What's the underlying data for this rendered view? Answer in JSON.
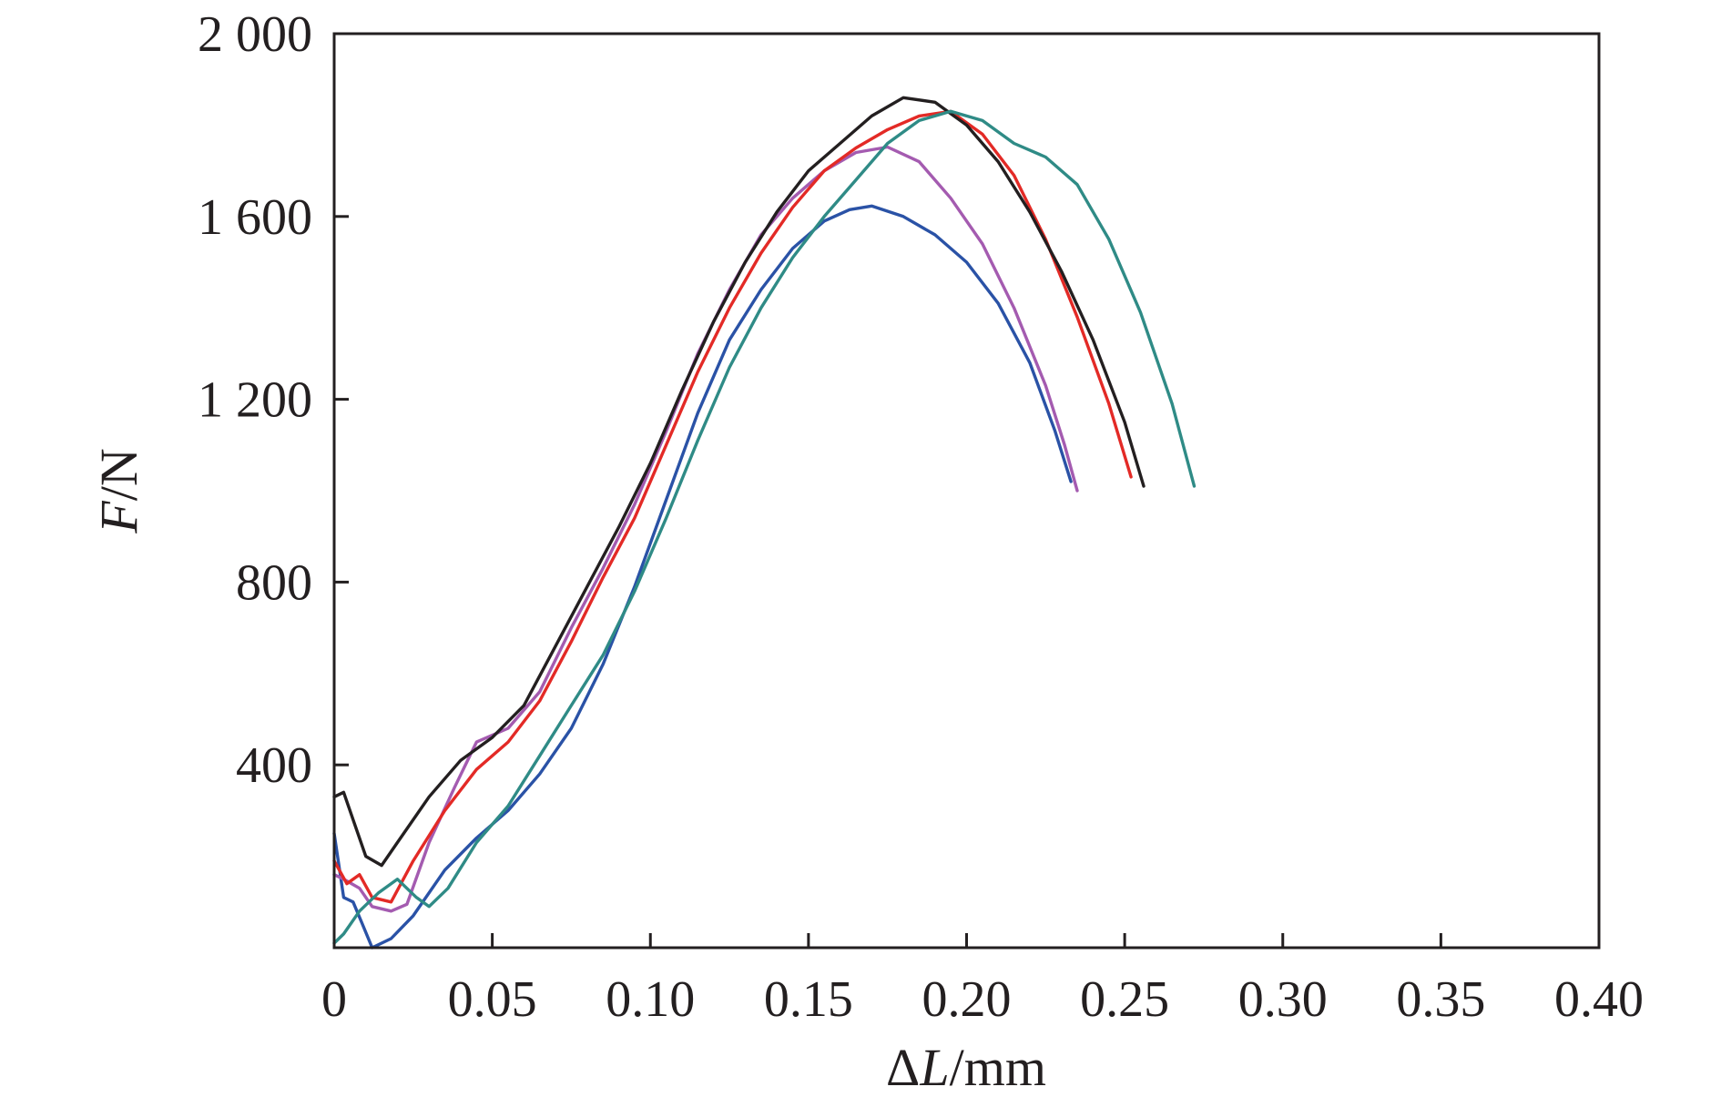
{
  "chart_data": {
    "type": "line",
    "xlabel": {
      "prefix": "Δ",
      "var": "L",
      "unit": "/mm"
    },
    "ylabel": {
      "var": "F",
      "unit": "/N"
    },
    "xlim": [
      0,
      0.4
    ],
    "ylim": [
      0,
      2000
    ],
    "x_ticks": [
      0,
      0.05,
      0.1,
      0.15,
      0.2,
      0.25,
      0.3,
      0.35,
      0.4
    ],
    "x_tick_labels": [
      "0",
      "0.05",
      "0.10",
      "0.15",
      "0.20",
      "0.25",
      "0.30",
      "0.35",
      "0.40"
    ],
    "y_ticks": [
      400,
      800,
      1200,
      1600,
      2000
    ],
    "y_tick_labels": [
      "400",
      "800",
      "1 200",
      "1 600",
      "2 000"
    ],
    "grid": false,
    "series": [
      {
        "color": "#2a52a6",
        "points": [
          [
            0.0,
            250
          ],
          [
            0.003,
            110
          ],
          [
            0.006,
            100
          ],
          [
            0.009,
            50
          ],
          [
            0.012,
            0
          ],
          [
            0.018,
            20
          ],
          [
            0.025,
            70
          ],
          [
            0.035,
            170
          ],
          [
            0.045,
            240
          ],
          [
            0.055,
            300
          ],
          [
            0.065,
            380
          ],
          [
            0.075,
            480
          ],
          [
            0.085,
            620
          ],
          [
            0.095,
            790
          ],
          [
            0.105,
            980
          ],
          [
            0.115,
            1170
          ],
          [
            0.125,
            1330
          ],
          [
            0.135,
            1440
          ],
          [
            0.145,
            1530
          ],
          [
            0.155,
            1590
          ],
          [
            0.163,
            1615
          ],
          [
            0.17,
            1623
          ],
          [
            0.18,
            1600
          ],
          [
            0.19,
            1560
          ],
          [
            0.2,
            1500
          ],
          [
            0.21,
            1410
          ],
          [
            0.22,
            1280
          ],
          [
            0.228,
            1130
          ],
          [
            0.233,
            1020
          ]
        ]
      },
      {
        "color": "#a45bb0",
        "points": [
          [
            0.0,
            160
          ],
          [
            0.003,
            150
          ],
          [
            0.008,
            130
          ],
          [
            0.012,
            90
          ],
          [
            0.018,
            80
          ],
          [
            0.023,
            95
          ],
          [
            0.03,
            230
          ],
          [
            0.038,
            350
          ],
          [
            0.045,
            450
          ],
          [
            0.055,
            480
          ],
          [
            0.065,
            560
          ],
          [
            0.075,
            700
          ],
          [
            0.085,
            830
          ],
          [
            0.095,
            970
          ],
          [
            0.105,
            1130
          ],
          [
            0.115,
            1300
          ],
          [
            0.125,
            1440
          ],
          [
            0.135,
            1560
          ],
          [
            0.145,
            1640
          ],
          [
            0.155,
            1700
          ],
          [
            0.165,
            1740
          ],
          [
            0.175,
            1752
          ],
          [
            0.185,
            1720
          ],
          [
            0.195,
            1640
          ],
          [
            0.205,
            1540
          ],
          [
            0.215,
            1400
          ],
          [
            0.225,
            1230
          ],
          [
            0.231,
            1100
          ],
          [
            0.235,
            1000
          ]
        ]
      },
      {
        "color": "#e32a26",
        "points": [
          [
            0.0,
            190
          ],
          [
            0.004,
            140
          ],
          [
            0.008,
            160
          ],
          [
            0.012,
            110
          ],
          [
            0.018,
            100
          ],
          [
            0.025,
            190
          ],
          [
            0.035,
            300
          ],
          [
            0.045,
            390
          ],
          [
            0.055,
            450
          ],
          [
            0.065,
            540
          ],
          [
            0.075,
            670
          ],
          [
            0.085,
            810
          ],
          [
            0.095,
            940
          ],
          [
            0.105,
            1100
          ],
          [
            0.115,
            1260
          ],
          [
            0.125,
            1400
          ],
          [
            0.135,
            1520
          ],
          [
            0.145,
            1620
          ],
          [
            0.155,
            1700
          ],
          [
            0.165,
            1750
          ],
          [
            0.175,
            1790
          ],
          [
            0.185,
            1820
          ],
          [
            0.195,
            1830
          ],
          [
            0.205,
            1780
          ],
          [
            0.215,
            1690
          ],
          [
            0.225,
            1550
          ],
          [
            0.235,
            1380
          ],
          [
            0.245,
            1190
          ],
          [
            0.252,
            1030
          ]
        ]
      },
      {
        "color": "#231f20",
        "points": [
          [
            0.0,
            330
          ],
          [
            0.003,
            340
          ],
          [
            0.006,
            280
          ],
          [
            0.01,
            200
          ],
          [
            0.015,
            180
          ],
          [
            0.02,
            230
          ],
          [
            0.03,
            330
          ],
          [
            0.04,
            410
          ],
          [
            0.05,
            460
          ],
          [
            0.06,
            530
          ],
          [
            0.07,
            660
          ],
          [
            0.08,
            790
          ],
          [
            0.09,
            920
          ],
          [
            0.1,
            1060
          ],
          [
            0.11,
            1220
          ],
          [
            0.12,
            1370
          ],
          [
            0.13,
            1500
          ],
          [
            0.14,
            1610
          ],
          [
            0.15,
            1700
          ],
          [
            0.16,
            1760
          ],
          [
            0.17,
            1820
          ],
          [
            0.18,
            1860
          ],
          [
            0.19,
            1850
          ],
          [
            0.2,
            1800
          ],
          [
            0.21,
            1720
          ],
          [
            0.22,
            1610
          ],
          [
            0.23,
            1480
          ],
          [
            0.24,
            1330
          ],
          [
            0.25,
            1150
          ],
          [
            0.256,
            1010
          ]
        ]
      },
      {
        "color": "#2f8b86",
        "points": [
          [
            0.0,
            10
          ],
          [
            0.003,
            30
          ],
          [
            0.008,
            80
          ],
          [
            0.014,
            120
          ],
          [
            0.02,
            150
          ],
          [
            0.026,
            110
          ],
          [
            0.03,
            90
          ],
          [
            0.036,
            130
          ],
          [
            0.045,
            230
          ],
          [
            0.055,
            310
          ],
          [
            0.065,
            420
          ],
          [
            0.075,
            530
          ],
          [
            0.085,
            640
          ],
          [
            0.095,
            780
          ],
          [
            0.105,
            940
          ],
          [
            0.115,
            1110
          ],
          [
            0.125,
            1270
          ],
          [
            0.135,
            1400
          ],
          [
            0.145,
            1510
          ],
          [
            0.155,
            1600
          ],
          [
            0.165,
            1680
          ],
          [
            0.175,
            1760
          ],
          [
            0.185,
            1810
          ],
          [
            0.195,
            1830
          ],
          [
            0.205,
            1810
          ],
          [
            0.215,
            1760
          ],
          [
            0.225,
            1730
          ],
          [
            0.235,
            1670
          ],
          [
            0.245,
            1550
          ],
          [
            0.255,
            1390
          ],
          [
            0.265,
            1190
          ],
          [
            0.272,
            1010
          ]
        ]
      }
    ]
  }
}
